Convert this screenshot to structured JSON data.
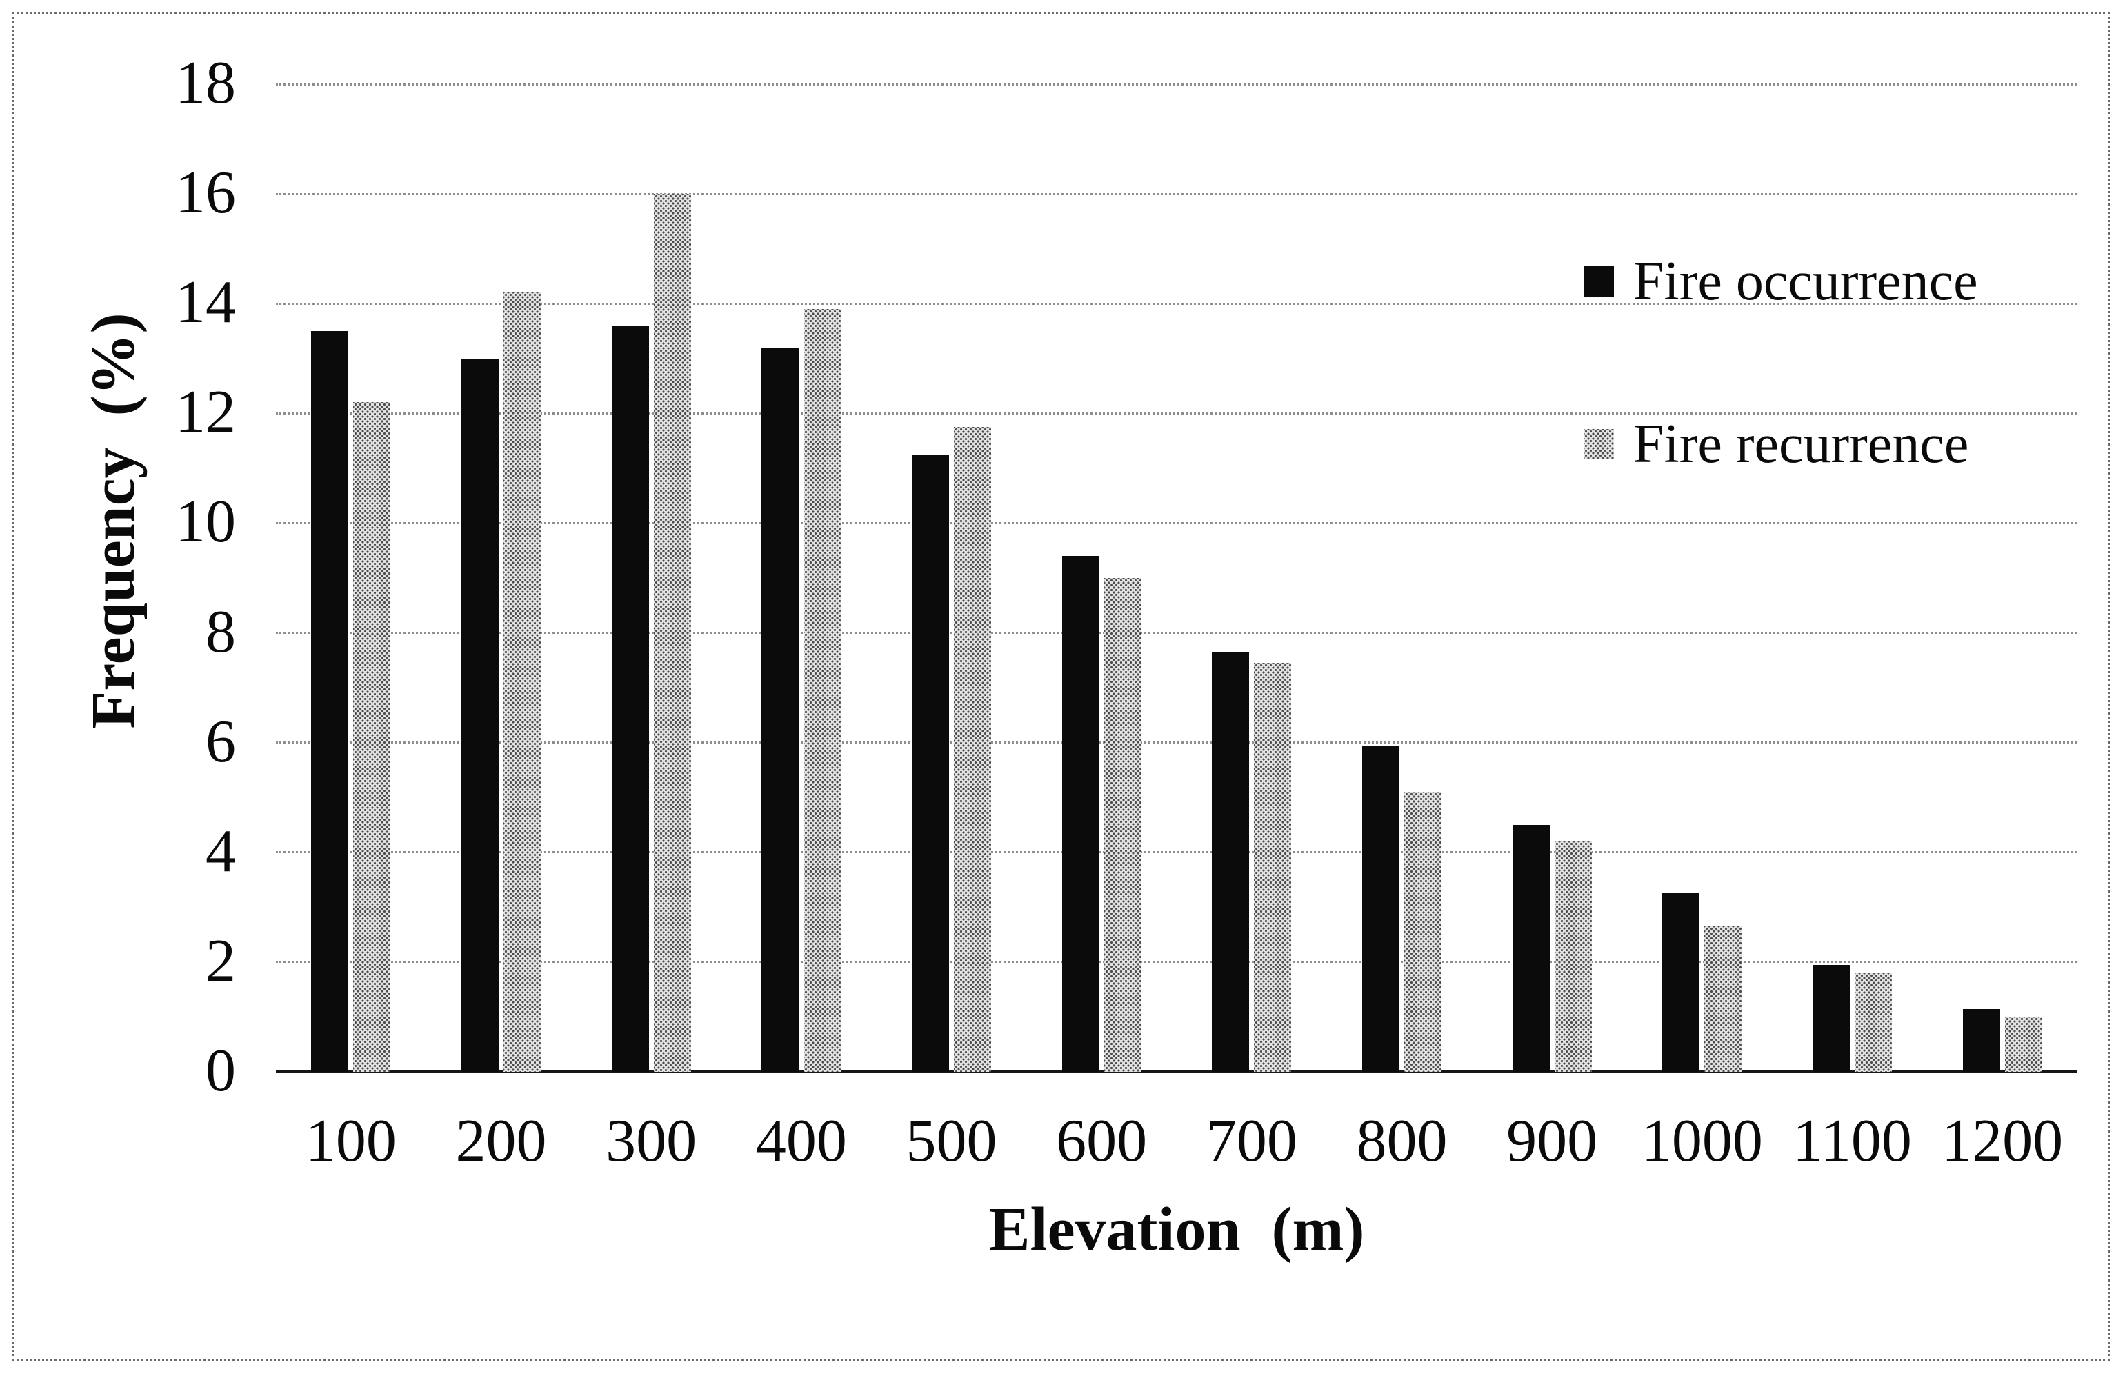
{
  "figure": {
    "type_note": "scanned grouped bar chart",
    "colors": {
      "bar_occurrence": "#0b0b0b",
      "bar_recurrence_base": "#e2e2e2",
      "bar_recurrence_dots": "#4c4c4c",
      "gridline": "#8e8e8e",
      "baseline": "#161616",
      "text": "#0a0a0a",
      "frame": "#6b6b6b",
      "background": "#ffffff"
    },
    "legend": [
      {
        "label": "Fire occurrence",
        "swatch": "black"
      },
      {
        "label": "Fire recurrence",
        "swatch": "halftone"
      }
    ]
  },
  "chart_data": {
    "type": "bar",
    "title": "",
    "xlabel": "Elevation  (m)",
    "ylabel": "Frequency  (%)",
    "categories": [
      "100",
      "200",
      "300",
      "400",
      "500",
      "600",
      "700",
      "800",
      "900",
      "1000",
      "1100",
      "1200"
    ],
    "series": [
      {
        "name": "Fire occurrence",
        "color": "black",
        "values": [
          13.5,
          13.0,
          13.6,
          13.2,
          11.25,
          9.4,
          7.65,
          5.95,
          4.5,
          3.25,
          1.95,
          1.15
        ]
      },
      {
        "name": "Fire recurrence",
        "color": "halftone-gray",
        "values": [
          12.2,
          14.2,
          16.0,
          13.9,
          11.75,
          9.0,
          7.45,
          5.1,
          4.2,
          2.65,
          1.8,
          1.0
        ]
      }
    ],
    "ylim": [
      0,
      18
    ],
    "ytick_step": 2,
    "yticks": [
      "0",
      "2",
      "4",
      "6",
      "8",
      "10",
      "12",
      "14",
      "16",
      "18"
    ],
    "grid": true,
    "gridline_style": "dotted horizontal",
    "legend_position": "upper right"
  }
}
